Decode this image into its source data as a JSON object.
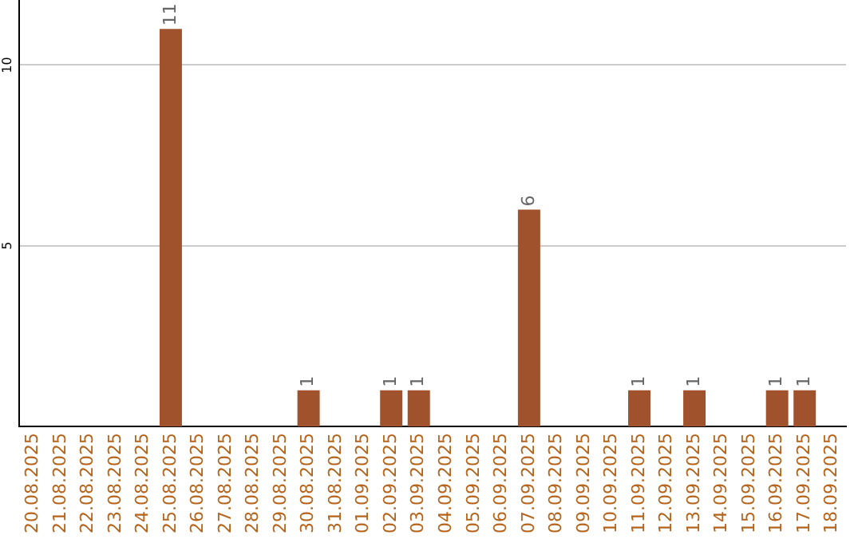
{
  "chart_data": {
    "type": "bar",
    "categories": [
      "20.08.2025",
      "21.08.2025",
      "22.08.2025",
      "23.08.2025",
      "24.08.2025",
      "25.08.2025",
      "26.08.2025",
      "27.08.2025",
      "28.08.2025",
      "29.08.2025",
      "30.08.2025",
      "31.08.2025",
      "01.09.2025",
      "02.09.2025",
      "03.09.2025",
      "04.09.2025",
      "05.09.2025",
      "06.09.2025",
      "07.09.2025",
      "08.09.2025",
      "09.09.2025",
      "10.09.2025",
      "11.09.2025",
      "12.09.2025",
      "13.09.2025",
      "14.09.2025",
      "15.09.2025",
      "16.09.2025",
      "17.09.2025",
      "18.09.2025"
    ],
    "values": [
      0,
      0,
      0,
      0,
      0,
      11,
      0,
      0,
      0,
      0,
      1,
      0,
      0,
      1,
      1,
      0,
      0,
      0,
      6,
      0,
      0,
      0,
      1,
      0,
      1,
      0,
      0,
      1,
      1,
      0
    ],
    "value_labels": [
      null,
      null,
      null,
      null,
      null,
      "11",
      null,
      null,
      null,
      null,
      "1",
      null,
      null,
      "1",
      "1",
      null,
      null,
      null,
      "6",
      null,
      null,
      null,
      "1",
      null,
      "1",
      null,
      null,
      "1",
      "1",
      null
    ],
    "color": "#a0522d",
    "ylim": [
      0,
      11.8
    ],
    "yticks": [
      5,
      10
    ],
    "grid": "y",
    "legend": false
  }
}
